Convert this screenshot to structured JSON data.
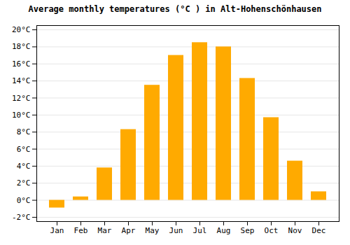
{
  "chart_data": {
    "type": "bar",
    "title": "Average monthly temperatures (°C ) in Alt-Hohenschönhausen",
    "categories": [
      "Jan",
      "Feb",
      "Mar",
      "Apr",
      "May",
      "Jun",
      "Jul",
      "Aug",
      "Sep",
      "Oct",
      "Nov",
      "Dec"
    ],
    "values": [
      -0.9,
      0.4,
      3.8,
      8.3,
      13.5,
      17.0,
      18.5,
      18.0,
      14.3,
      9.7,
      4.6,
      1.0
    ],
    "color": "#FFAA00",
    "ylim": [
      -2.5,
      20.5
    ],
    "yticks": [
      {
        "value": -2,
        "label": "-2°C"
      },
      {
        "value": 0,
        "label": "0°C"
      },
      {
        "value": 2,
        "label": "2°C"
      },
      {
        "value": 4,
        "label": "4°C"
      },
      {
        "value": 6,
        "label": "6°C"
      },
      {
        "value": 8,
        "label": "8°C"
      },
      {
        "value": 10,
        "label": "10°C"
      },
      {
        "value": 12,
        "label": "12°C"
      },
      {
        "value": 14,
        "label": "14°C"
      },
      {
        "value": 16,
        "label": "16°C"
      },
      {
        "value": 18,
        "label": "18°C"
      },
      {
        "value": 20,
        "label": "20°C"
      }
    ],
    "grid": true
  }
}
